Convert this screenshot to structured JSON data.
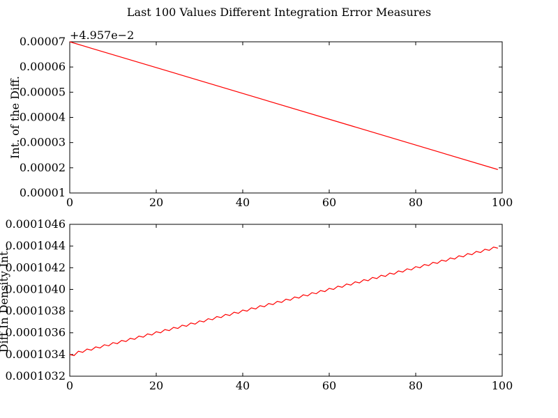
{
  "figure": {
    "title": "Last 100 Values Different Integration Error Measures"
  },
  "chart_data": [
    {
      "type": "line",
      "ylabel": "Int. of the Diff.",
      "offset_text": "+4.957e−2",
      "xlim": [
        0,
        100
      ],
      "ylim": [
        1e-05,
        7e-05
      ],
      "x_ticks": [
        "0",
        "20",
        "40",
        "60",
        "80",
        "100"
      ],
      "y_ticks": [
        "0.00001",
        "0.00002",
        "0.00003",
        "0.00004",
        "0.00005",
        "0.00006",
        "0.00007"
      ],
      "line_color": "#ff0000",
      "series": [
        {
          "x": [
            0,
            99
          ],
          "y": [
            7e-05,
            1.93e-05
          ]
        }
      ]
    },
    {
      "type": "line",
      "ylabel": "Diff In Density Int.",
      "xlim": [
        0,
        100
      ],
      "ylim": [
        0.0001032,
        0.0001046
      ],
      "x_ticks": [
        "0",
        "20",
        "40",
        "60",
        "80",
        "100"
      ],
      "y_ticks": [
        "0.0001032",
        "0.0001034",
        "0.0001036",
        "0.0001038",
        "0.0001040",
        "0.0001042",
        "0.0001044",
        "0.0001046"
      ],
      "line_color": "#ff0000",
      "series": [
        {
          "x_start": 0,
          "x_step": 1,
          "y": [
            0.0001034,
            0.00010339,
            0.00010343,
            0.00010342,
            0.00010345,
            0.00010344,
            0.00010347,
            0.00010346,
            0.00010349,
            0.00010348,
            0.00010351,
            0.0001035,
            0.00010353,
            0.00010352,
            0.00010355,
            0.00010354,
            0.00010357,
            0.00010356,
            0.00010359,
            0.00010358,
            0.00010361,
            0.0001036,
            0.00010363,
            0.00010362,
            0.00010365,
            0.00010364,
            0.00010367,
            0.00010366,
            0.00010369,
            0.00010368,
            0.00010371,
            0.0001037,
            0.00010373,
            0.00010372,
            0.00010375,
            0.00010374,
            0.00010377,
            0.00010376,
            0.00010379,
            0.00010378,
            0.00010381,
            0.0001038,
            0.00010383,
            0.00010382,
            0.00010385,
            0.00010384,
            0.00010387,
            0.00010386,
            0.00010389,
            0.00010388,
            0.00010391,
            0.0001039,
            0.00010393,
            0.00010392,
            0.00010395,
            0.00010394,
            0.00010397,
            0.00010396,
            0.00010399,
            0.00010398,
            0.00010401,
            0.000104,
            0.00010403,
            0.00010402,
            0.00010405,
            0.00010404,
            0.00010407,
            0.00010406,
            0.00010409,
            0.00010408,
            0.00010411,
            0.0001041,
            0.00010413,
            0.00010412,
            0.00010415,
            0.00010414,
            0.00010417,
            0.00010416,
            0.00010419,
            0.00010418,
            0.00010421,
            0.0001042,
            0.00010423,
            0.00010422,
            0.00010425,
            0.00010424,
            0.00010427,
            0.00010426,
            0.00010429,
            0.00010428,
            0.00010431,
            0.0001043,
            0.00010433,
            0.00010432,
            0.00010435,
            0.00010434,
            0.00010437,
            0.00010436,
            0.00010439,
            0.00010438
          ]
        }
      ]
    }
  ]
}
